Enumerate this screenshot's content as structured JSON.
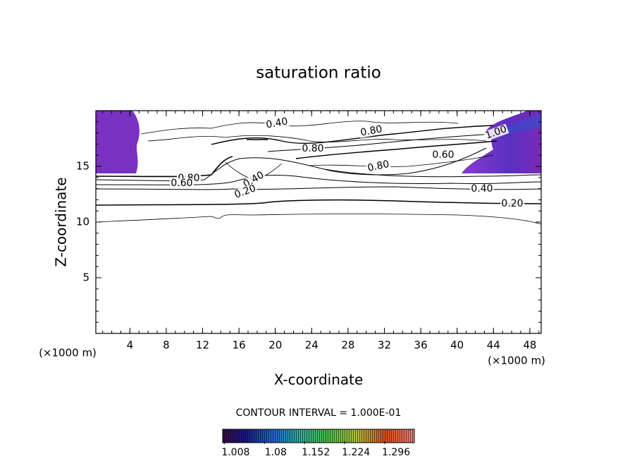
{
  "chart_data": {
    "type": "contour",
    "title": "saturation ratio",
    "xlabel": "X-coordinate",
    "ylabel": "Z-coordinate",
    "x_unit": "(×1000 m)",
    "x_unit_right": "(×1000 m)",
    "xlim": [
      0.25,
      49.25
    ],
    "xticks": [
      4,
      8,
      12,
      16,
      20,
      24,
      28,
      32,
      36,
      40,
      44,
      48
    ],
    "ylim": [
      0,
      20
    ],
    "yticks": [
      5,
      10,
      15
    ],
    "contour_interval_text": "CONTOUR INTERVAL = 1.000E-01",
    "contour_labels": [
      "0.40",
      "0.80",
      "0.80",
      "0.80",
      "0.60",
      "1.00",
      "0.80",
      "0.60",
      "0.40",
      "0.20",
      "0.40",
      "0.20"
    ],
    "colorbar": {
      "clim": [
        1.005,
        1.349
      ],
      "ticks": [
        1.008,
        1.08,
        1.152,
        1.224,
        1.296
      ]
    }
  }
}
